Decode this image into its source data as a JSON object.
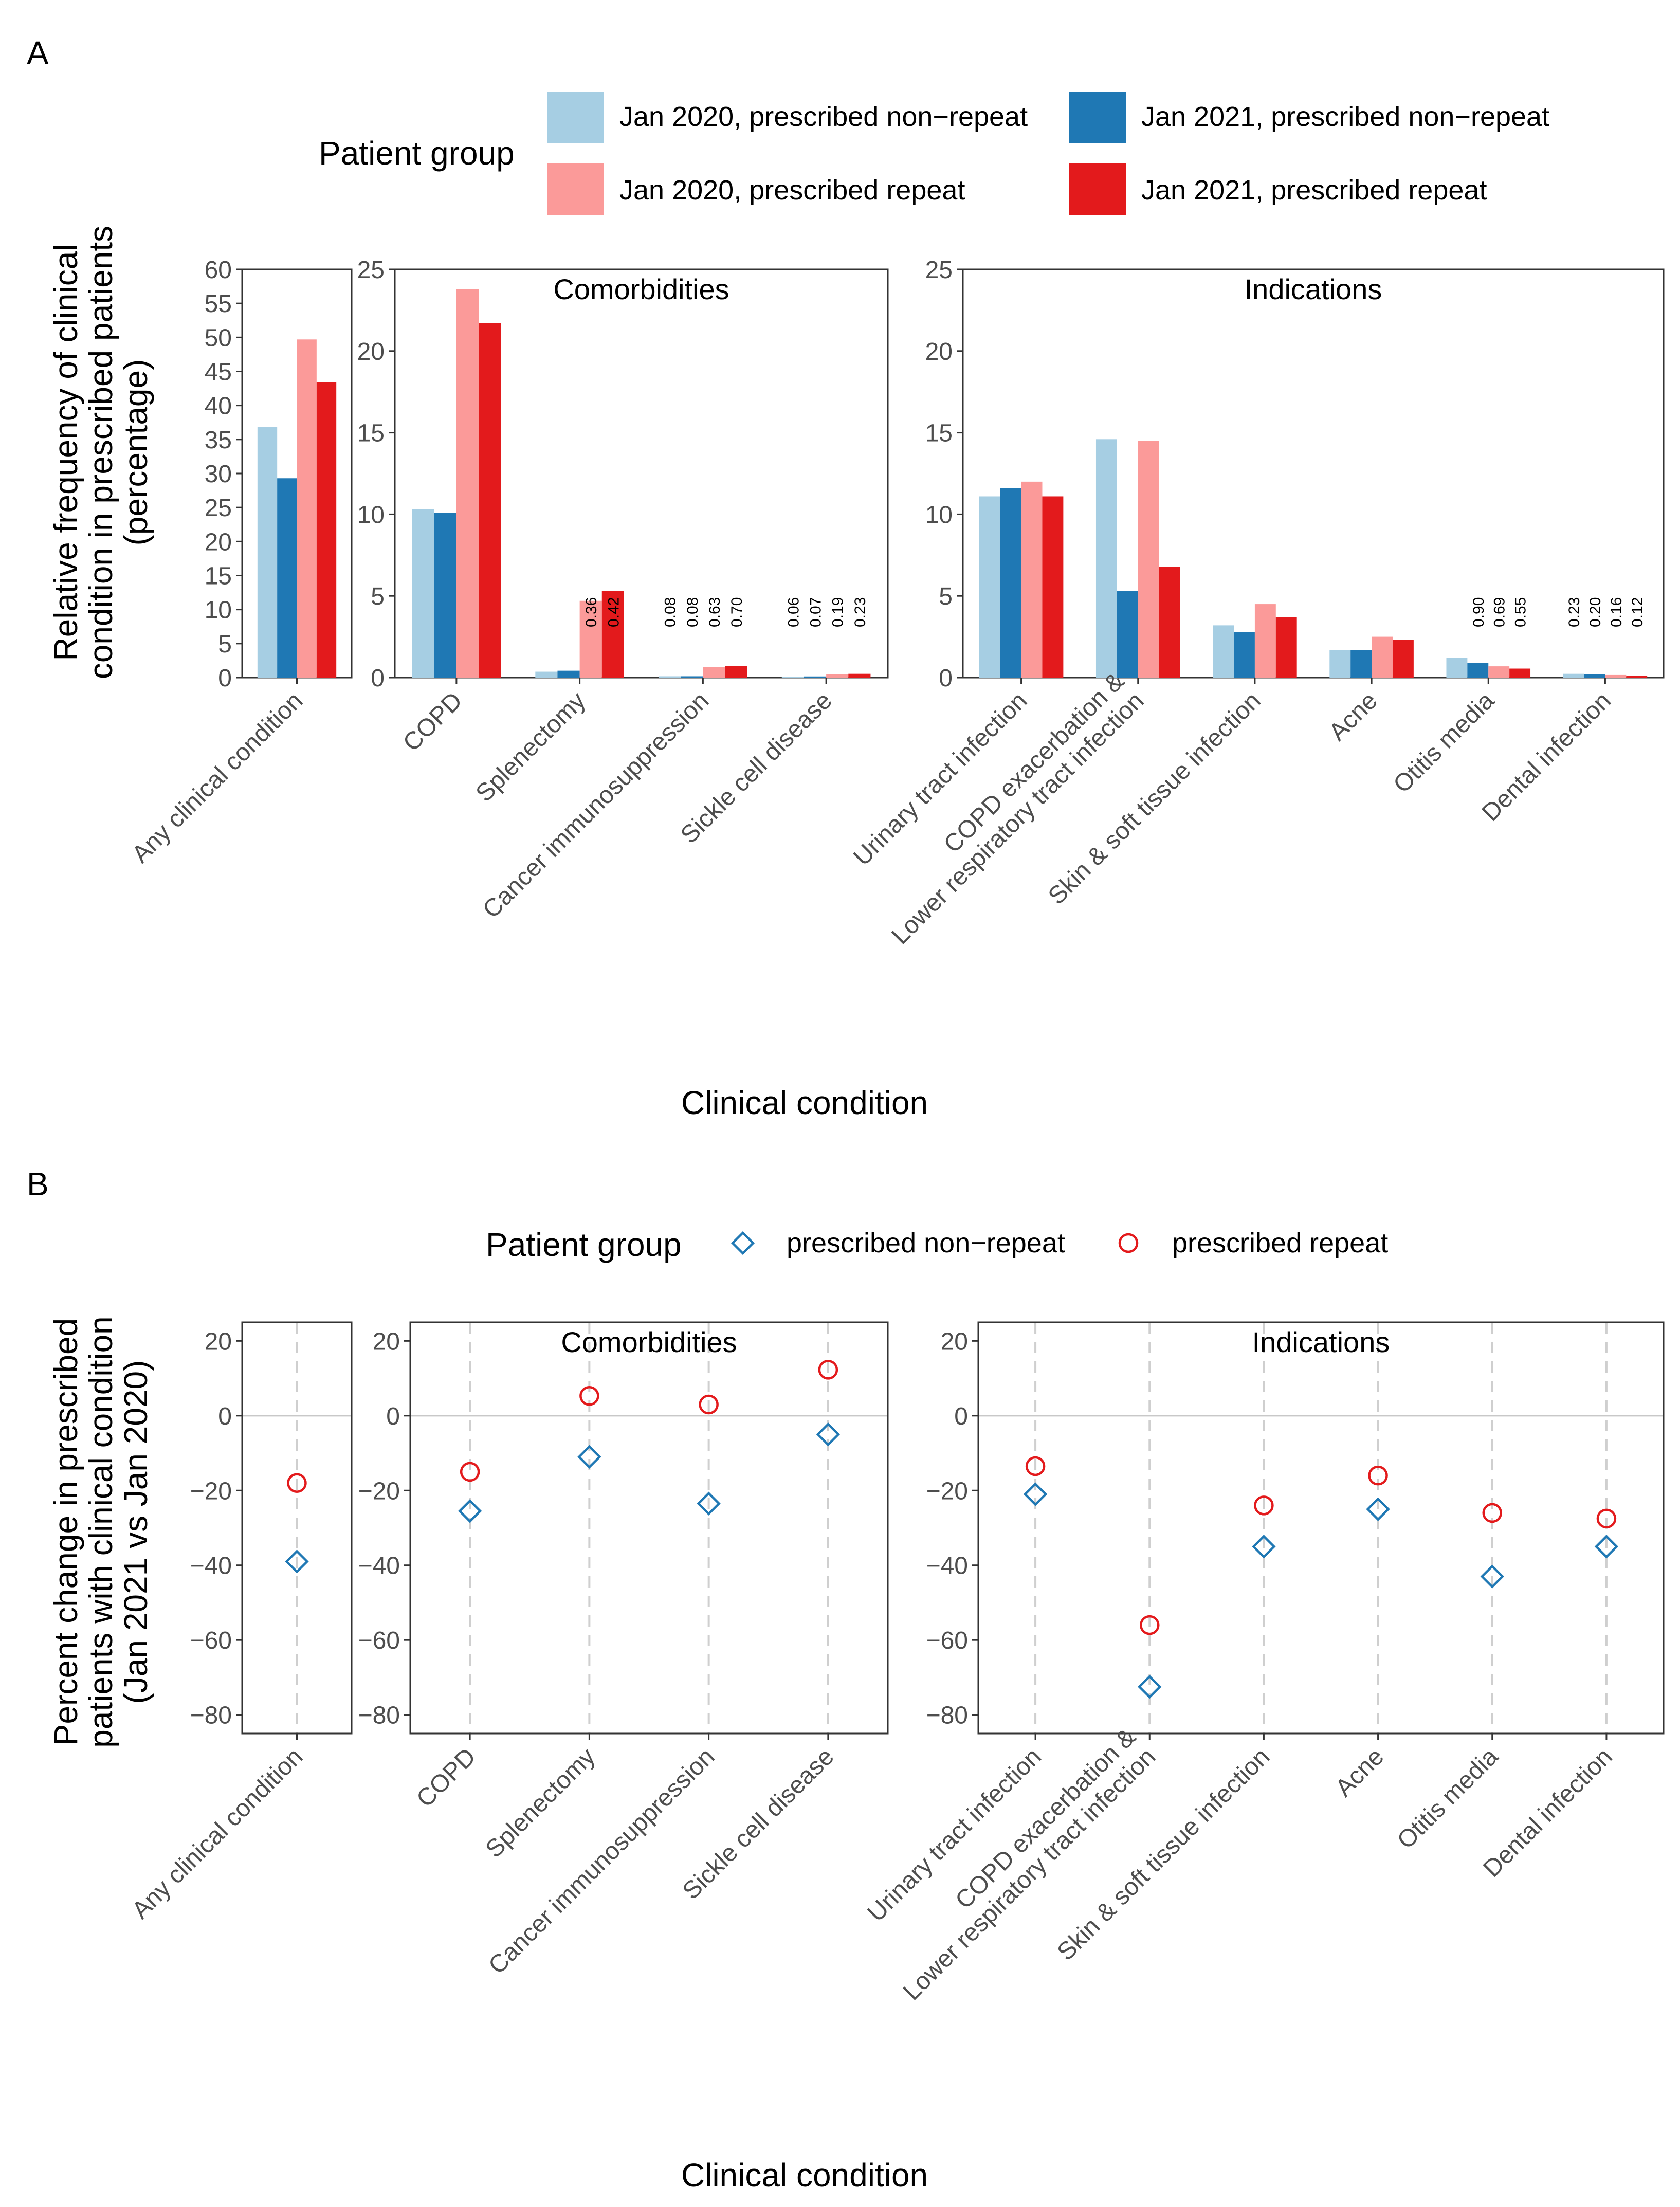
{
  "colors": {
    "jan2020_nonrepeat": "#a6cee3",
    "jan2021_nonrepeat": "#1f78b4",
    "jan2020_repeat": "#fb9a99",
    "jan2021_repeat": "#e31a1c",
    "point_nonrepeat": "#1f78b4",
    "point_repeat": "#e31a1c"
  },
  "chart_data": [
    {
      "panel": "A",
      "type": "bar",
      "legend": {
        "title": "Patient group",
        "entries": [
          "Jan 2020, prescribed non−repeat",
          "Jan 2021, prescribed non−repeat",
          "Jan 2020, prescribed repeat",
          "Jan 2021, prescribed repeat"
        ]
      },
      "ylabel": [
        "Relative frequency of clinical",
        "condition in prescribed patients",
        "(percentage)"
      ],
      "xlabel": "Clinical condition",
      "facets": [
        {
          "strip": "",
          "ylim": [
            0,
            60
          ],
          "yticks": [
            "0",
            "5",
            "10",
            "15",
            "20",
            "25",
            "30",
            "35",
            "40",
            "45",
            "50",
            "55",
            "60"
          ],
          "categories": [
            "Any clinical condition"
          ],
          "series": [
            {
              "name": "Jan 2020, prescribed non−repeat",
              "values": [
                36.8
              ]
            },
            {
              "name": "Jan 2021, prescribed non−repeat",
              "values": [
                29.3
              ]
            },
            {
              "name": "Jan 2020, prescribed repeat",
              "values": [
                49.7
              ]
            },
            {
              "name": "Jan 2021, prescribed repeat",
              "values": [
                43.4
              ]
            }
          ],
          "value_labels": [
            null
          ]
        },
        {
          "strip": "Comorbidities",
          "ylim": [
            0,
            25
          ],
          "yticks": [
            "0",
            "5",
            "10",
            "15",
            "20",
            "25"
          ],
          "categories": [
            "COPD",
            "Splenectomy",
            "Cancer immunosuppression",
            "Sickle cell disease"
          ],
          "series": [
            {
              "name": "Jan 2020, prescribed non−repeat",
              "values": [
                10.3,
                0.36,
                0.08,
                0.06
              ]
            },
            {
              "name": "Jan 2021, prescribed non−repeat",
              "values": [
                10.1,
                0.42,
                0.08,
                0.07
              ]
            },
            {
              "name": "Jan 2020, prescribed repeat",
              "values": [
                23.8,
                4.7,
                0.63,
                0.19
              ]
            },
            {
              "name": "Jan 2021, prescribed repeat",
              "values": [
                21.7,
                5.3,
                0.7,
                0.23
              ]
            }
          ],
          "value_labels": [
            null,
            [
              "0.36",
              "0.42"
            ],
            [
              "0.08",
              "0.08",
              "0.63",
              "0.70"
            ],
            [
              "0.06",
              "0.07",
              "0.19",
              "0.23"
            ]
          ]
        },
        {
          "strip": "Indications",
          "ylim": [
            0,
            25
          ],
          "yticks": [
            "0",
            "5",
            "10",
            "15",
            "20",
            "25"
          ],
          "categories": [
            "Urinary tract infection",
            "COPD exacerbation &\nLower respiratory tract infection",
            "Skin & soft tissue infection",
            "Acne",
            "Otitis media",
            "Dental infection"
          ],
          "series": [
            {
              "name": "Jan 2020, prescribed non−repeat",
              "values": [
                11.1,
                14.6,
                3.2,
                1.7,
                1.2,
                0.23
              ]
            },
            {
              "name": "Jan 2021, prescribed non−repeat",
              "values": [
                11.6,
                5.3,
                2.8,
                1.7,
                0.9,
                0.2
              ]
            },
            {
              "name": "Jan 2020, prescribed repeat",
              "values": [
                12.0,
                14.5,
                4.5,
                2.5,
                0.69,
                0.16
              ]
            },
            {
              "name": "Jan 2021, prescribed repeat",
              "values": [
                11.1,
                6.8,
                3.7,
                2.3,
                0.55,
                0.12
              ]
            }
          ],
          "value_labels": [
            null,
            null,
            null,
            null,
            [
              "0.90",
              "0.69",
              "0.55"
            ],
            [
              "0.23",
              "0.20",
              "0.16",
              "0.12"
            ]
          ]
        }
      ]
    },
    {
      "panel": "B",
      "type": "scatter",
      "legend": {
        "title": "Patient group",
        "entries": [
          "prescribed non−repeat",
          "prescribed repeat"
        ]
      },
      "ylabel": [
        "Percent change in prescribed",
        "patients with clinical condition",
        "(Jan 2021 vs Jan 2020)"
      ],
      "xlabel": "Clinical condition",
      "ylim": [
        -85,
        25
      ],
      "yticks": [
        "20",
        "0",
        "−20",
        "−40",
        "−60",
        "−80"
      ],
      "facets": [
        {
          "strip": "",
          "categories": [
            "Any clinical condition"
          ],
          "series": [
            {
              "name": "prescribed non−repeat",
              "marker": "diamond",
              "values": [
                -39
              ]
            },
            {
              "name": "prescribed repeat",
              "marker": "circle",
              "values": [
                -18
              ]
            }
          ]
        },
        {
          "strip": "Comorbidities",
          "categories": [
            "COPD",
            "Splenectomy",
            "Cancer immunosuppression",
            "Sickle cell disease"
          ],
          "series": [
            {
              "name": "prescribed non−repeat",
              "marker": "diamond",
              "values": [
                -25.5,
                -11,
                -23.5,
                -5
              ]
            },
            {
              "name": "prescribed repeat",
              "marker": "circle",
              "values": [
                -15,
                5.3,
                3,
                12.3
              ]
            }
          ]
        },
        {
          "strip": "Indications",
          "categories": [
            "Urinary tract infection",
            "COPD exacerbation &\nLower respiratory tract infection",
            "Skin & soft tissue infection",
            "Acne",
            "Otitis media",
            "Dental infection"
          ],
          "series": [
            {
              "name": "prescribed non−repeat",
              "marker": "diamond",
              "values": [
                -21,
                -72.5,
                -35,
                -25,
                -43,
                -35
              ]
            },
            {
              "name": "prescribed repeat",
              "marker": "circle",
              "values": [
                -13.5,
                -56,
                -24,
                -16,
                -26,
                -27.5
              ]
            }
          ]
        }
      ]
    }
  ]
}
